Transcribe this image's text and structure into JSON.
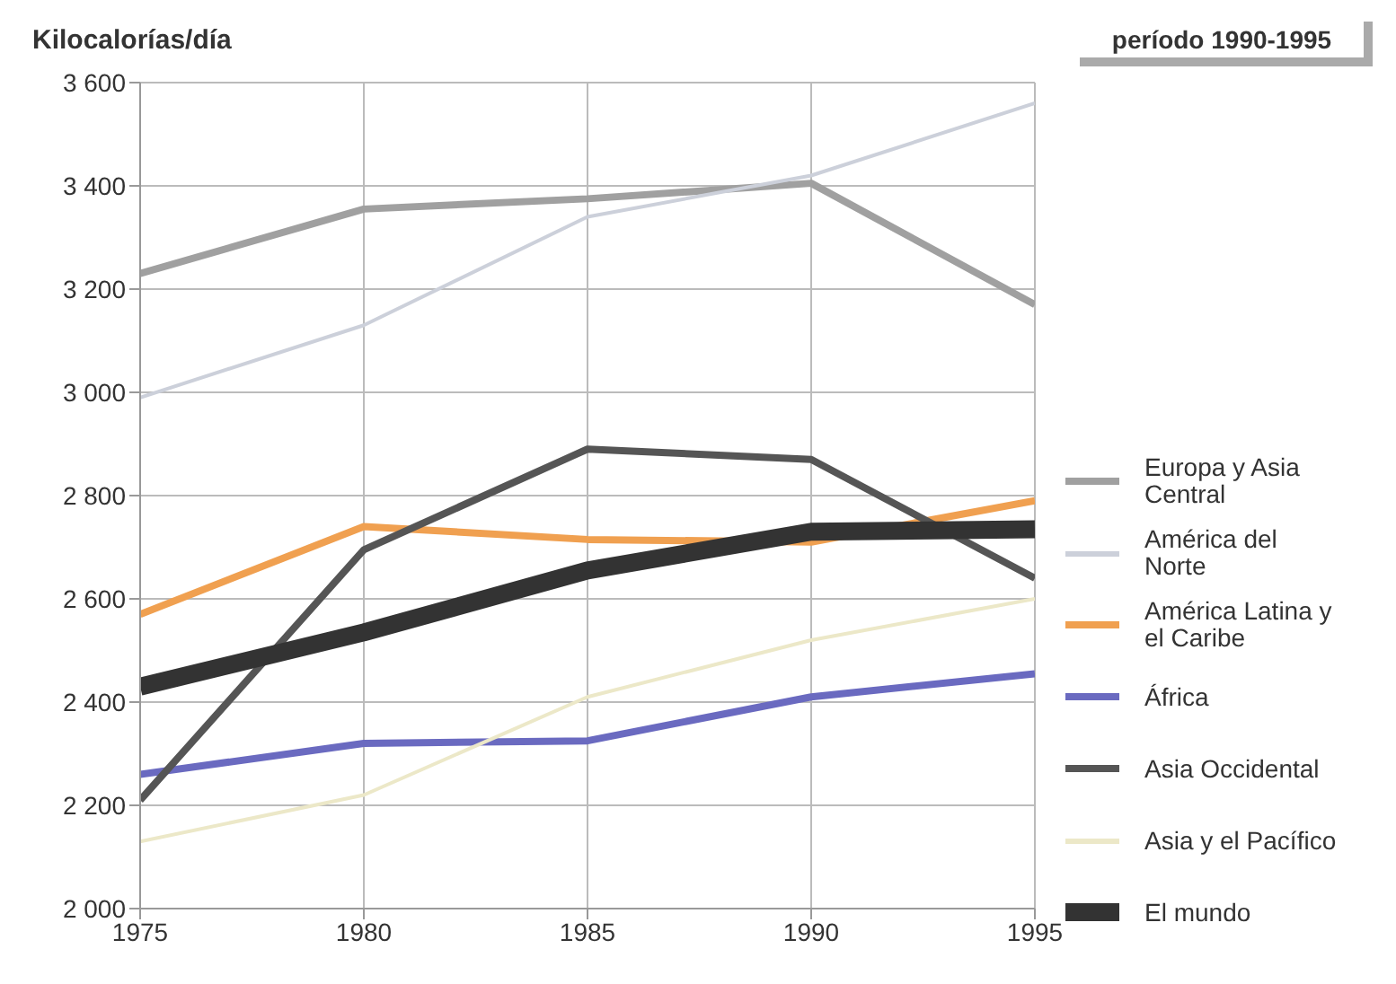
{
  "chart_data": {
    "type": "line",
    "ylabel": "Kilocalorías/día",
    "annotations": [
      "período 1990-1995"
    ],
    "x": [
      1975,
      1980,
      1985,
      1990,
      1995
    ],
    "series": [
      {
        "name": "Europa y Asia Central",
        "color": "#a0a0a0",
        "values": [
          3230,
          3355,
          3375,
          3405,
          3170
        ]
      },
      {
        "name": "América del Norte",
        "color": "#ccd0da",
        "values": [
          2990,
          3130,
          3340,
          3420,
          3560
        ]
      },
      {
        "name": "América Latina y el Caribe",
        "color": "#f0a050",
        "values": [
          2570,
          2740,
          2715,
          2710,
          2790
        ]
      },
      {
        "name": "África",
        "color": "#6a6ac0",
        "values": [
          2260,
          2320,
          2325,
          2410,
          2455
        ]
      },
      {
        "name": "Asia Occidental",
        "color": "#555555",
        "values": [
          2210,
          2695,
          2890,
          2870,
          2640
        ]
      },
      {
        "name": "Asia y el Pacífico",
        "color": "#ece8c8",
        "values": [
          2130,
          2220,
          2410,
          2520,
          2600
        ]
      },
      {
        "name": "El mundo",
        "color": "#333333",
        "values": [
          2430,
          2535,
          2655,
          2730,
          2735
        ]
      }
    ],
    "xlim": [
      1975,
      1995
    ],
    "xticks": [
      1975,
      1980,
      1985,
      1990,
      1995
    ],
    "ylim": [
      2000,
      3600
    ],
    "yticks": [
      {
        "value": 2000,
        "label": "2 000"
      },
      {
        "value": 2200,
        "label": "2 200"
      },
      {
        "value": 2400,
        "label": "2 400"
      },
      {
        "value": 2600,
        "label": "2 600"
      },
      {
        "value": 2800,
        "label": "2 800"
      },
      {
        "value": 3000,
        "label": "3 000"
      },
      {
        "value": 3200,
        "label": "3 200"
      },
      {
        "value": 3400,
        "label": "3 400"
      },
      {
        "value": 3600,
        "label": "3 600"
      }
    ],
    "grid": true,
    "legend": "right",
    "marker": "none",
    "line_style": "solid"
  }
}
